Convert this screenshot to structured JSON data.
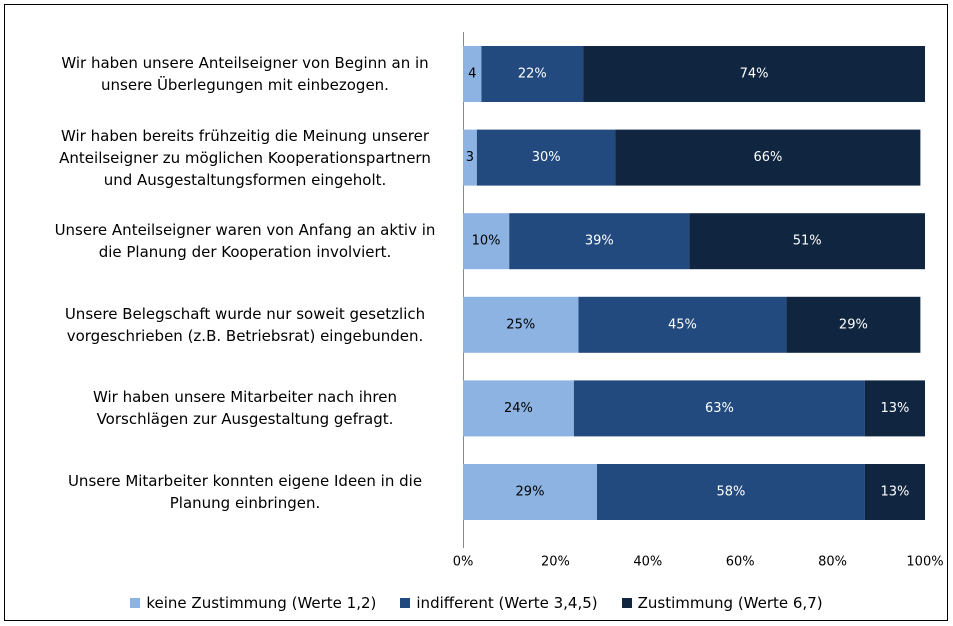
{
  "chart_data": {
    "type": "stacked_barh",
    "categories": [
      "Wir haben unsere Anteilseigner von Beginn an in\nunsere Überlegungen mit einbezogen.",
      "Wir haben bereits frühzeitig die Meinung unserer\nAnteilseigner zu möglichen Kooperationspartnern\nund Ausgestaltungsformen eingeholt.",
      "Unsere Anteilseigner waren von Anfang an aktiv in\ndie Planung der Kooperation involviert.",
      "Unsere Belegschaft wurde nur soweit gesetzlich\nvorgeschrieben (z.B. Betriebsrat) eingebunden.",
      "Wir haben unsere Mitarbeiter nach ihren\nVorschlägen zur Ausgestaltung gefragt.",
      "Unsere Mitarbeiter konnten eigene Ideen in die\nPlanung einbringen."
    ],
    "series": [
      {
        "name": "keine Zustimmung (Werte 1,2)",
        "color": "#8db3e2",
        "label_color": "#000000",
        "values": [
          4,
          3,
          10,
          25,
          24,
          29
        ],
        "value_labels": [
          "4",
          "3",
          "10%",
          "25%",
          "24%",
          "29%"
        ]
      },
      {
        "name": "indifferent (Werte 3,4,5)",
        "color": "#234a7e",
        "label_color": "#ffffff",
        "values": [
          22,
          30,
          39,
          45,
          63,
          58
        ],
        "value_labels": [
          "22%",
          "30%",
          "39%",
          "45%",
          "63%",
          "58%"
        ]
      },
      {
        "name": "Zustimmung (Werte 6,7)",
        "color": "#10253f",
        "label_color": "#ffffff",
        "values": [
          74,
          66,
          51,
          29,
          13,
          13
        ],
        "value_labels": [
          "74%",
          "66%",
          "51%",
          "29%",
          "13%",
          "13%"
        ]
      }
    ],
    "xlim": [
      0,
      100
    ],
    "xticks": [
      {
        "value": 0,
        "label": "0%"
      },
      {
        "value": 20,
        "label": "20%"
      },
      {
        "value": 40,
        "label": "40%"
      },
      {
        "value": 60,
        "label": "60%"
      },
      {
        "value": 80,
        "label": "80%"
      },
      {
        "value": 100,
        "label": "100%"
      }
    ],
    "legend": "bottom"
  }
}
